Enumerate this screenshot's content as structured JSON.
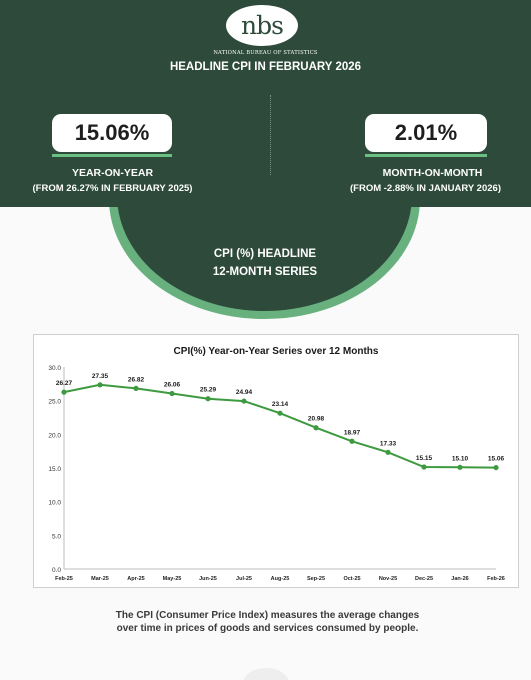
{
  "header": {
    "logo_text": "nbs",
    "agency": "NATIONAL BUREAU OF STATISTICS",
    "title": "HEADLINE CPI IN FEBRUARY 2026"
  },
  "stats": {
    "yoy": {
      "value": "15.06%",
      "label": "YEAR-ON-YEAR",
      "sub": "(FROM 26.27% IN FEBRUARY 2025)"
    },
    "mom": {
      "value": "2.01%",
      "label": "MONTH-ON-MONTH",
      "sub": "(FROM -2.88% IN JANUARY 2026)"
    }
  },
  "series_heading": {
    "line1": "CPI (%)  HEADLINE",
    "line2": "12-MONTH SERIES"
  },
  "colors": {
    "dark_green": "#2d4a3a",
    "accent_green": "#68b17f",
    "line": "#3d9a3f"
  },
  "chart_data": {
    "type": "line",
    "title": "CPI(%) Year-on-Year Series over 12 Months",
    "categories": [
      "Feb-25",
      "Mar-25",
      "Apr-25",
      "May-25",
      "Jun-25",
      "Jul-25",
      "Aug-25",
      "Sep-25",
      "Oct-25",
      "Nov-25",
      "Dec-25",
      "Jan-26",
      "Feb-26"
    ],
    "values": [
      26.27,
      27.35,
      26.82,
      26.06,
      25.29,
      24.94,
      23.14,
      20.98,
      18.97,
      17.33,
      15.15,
      15.1,
      15.06
    ],
    "data_labels": [
      "26.27",
      "27.35",
      "26.82",
      "26.06",
      "25.29",
      "24.94",
      "23.14",
      "20.98",
      "18.97",
      "17.33",
      "15.15",
      "15.10",
      "15.06"
    ],
    "y_ticks": [
      "0.0",
      "5.0",
      "10.0",
      "15.0",
      "20.0",
      "25.0",
      "30.0"
    ],
    "ylim": [
      0,
      30
    ],
    "grid": false,
    "xlabel": "",
    "ylabel": ""
  },
  "footnote": {
    "line1": "The CPI (Consumer Price Index) measures the average changes",
    "line2": "over time in prices of goods and services consumed by people."
  }
}
